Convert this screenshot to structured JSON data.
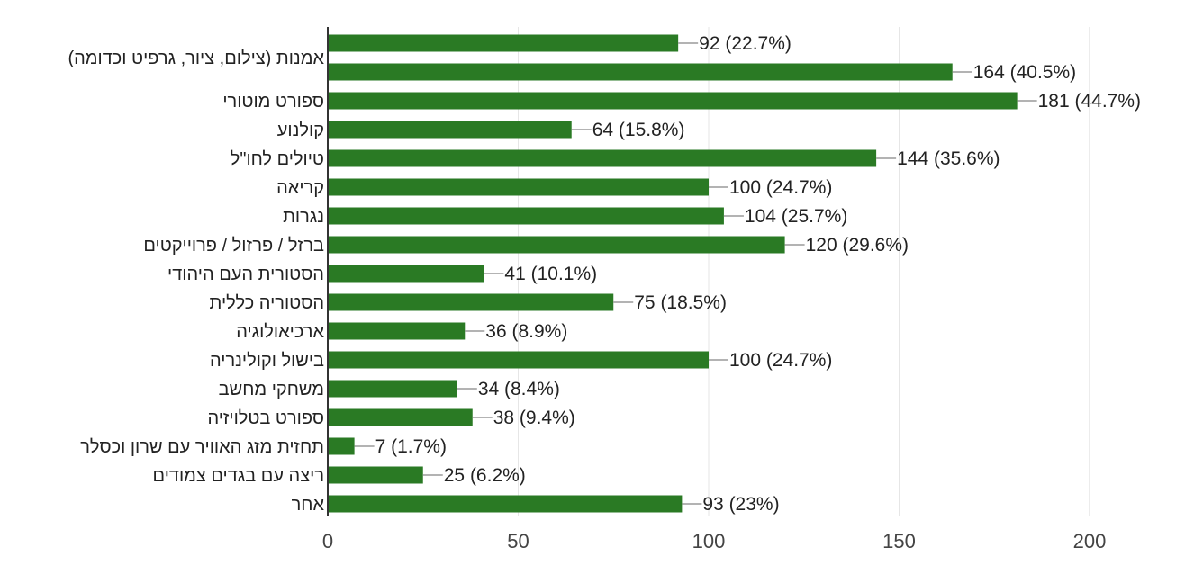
{
  "chart_data": {
    "type": "bar",
    "orientation": "horizontal",
    "categories": [
      "אמנות (צילום, ציור, גרפיט וכדומה)",
      "",
      "ספורט מוטורי",
      "קולנוע",
      "טיולים לחו\"ל",
      "קריאה",
      "נגרות",
      "ברזל / פרזול / פרוייקטים",
      "הסטורית העם היהודי",
      "הסטוריה כללית",
      "ארכיאולוגיה",
      "בישול וקולינריה",
      "משחקי מחשב",
      "ספורט בטלויזיה",
      "תחזית מזג האוויר עם שרון וכסלר",
      "ריצה עם בגדים צמודים",
      "אחר"
    ],
    "values": [
      92,
      164,
      181,
      64,
      144,
      100,
      104,
      120,
      41,
      75,
      36,
      100,
      34,
      38,
      7,
      25,
      93
    ],
    "data_labels": [
      "92 (22.7%)",
      "164 (40.5%)",
      "181 (44.7%)",
      "64 (15.8%)",
      "144 (35.6%)",
      "100 (24.7%)",
      "104 (25.7%)",
      "120 (29.6%)",
      "41 (10.1%)",
      "75 (18.5%)",
      "36 (8.9%)",
      "100 (24.7%)",
      "34 (8.4%)",
      "38 (9.4%)",
      "7 (1.7%)",
      "25 (6.2%)",
      "93 (23%)"
    ],
    "xlim": [
      0,
      200
    ],
    "xticks": [
      "0",
      "50",
      "100",
      "150",
      "200"
    ],
    "grid": true,
    "colors": {
      "bar": "#2a7a24",
      "grid": "#e6e6e6",
      "axis": "#333333",
      "leader": "#9a9a9a"
    }
  }
}
